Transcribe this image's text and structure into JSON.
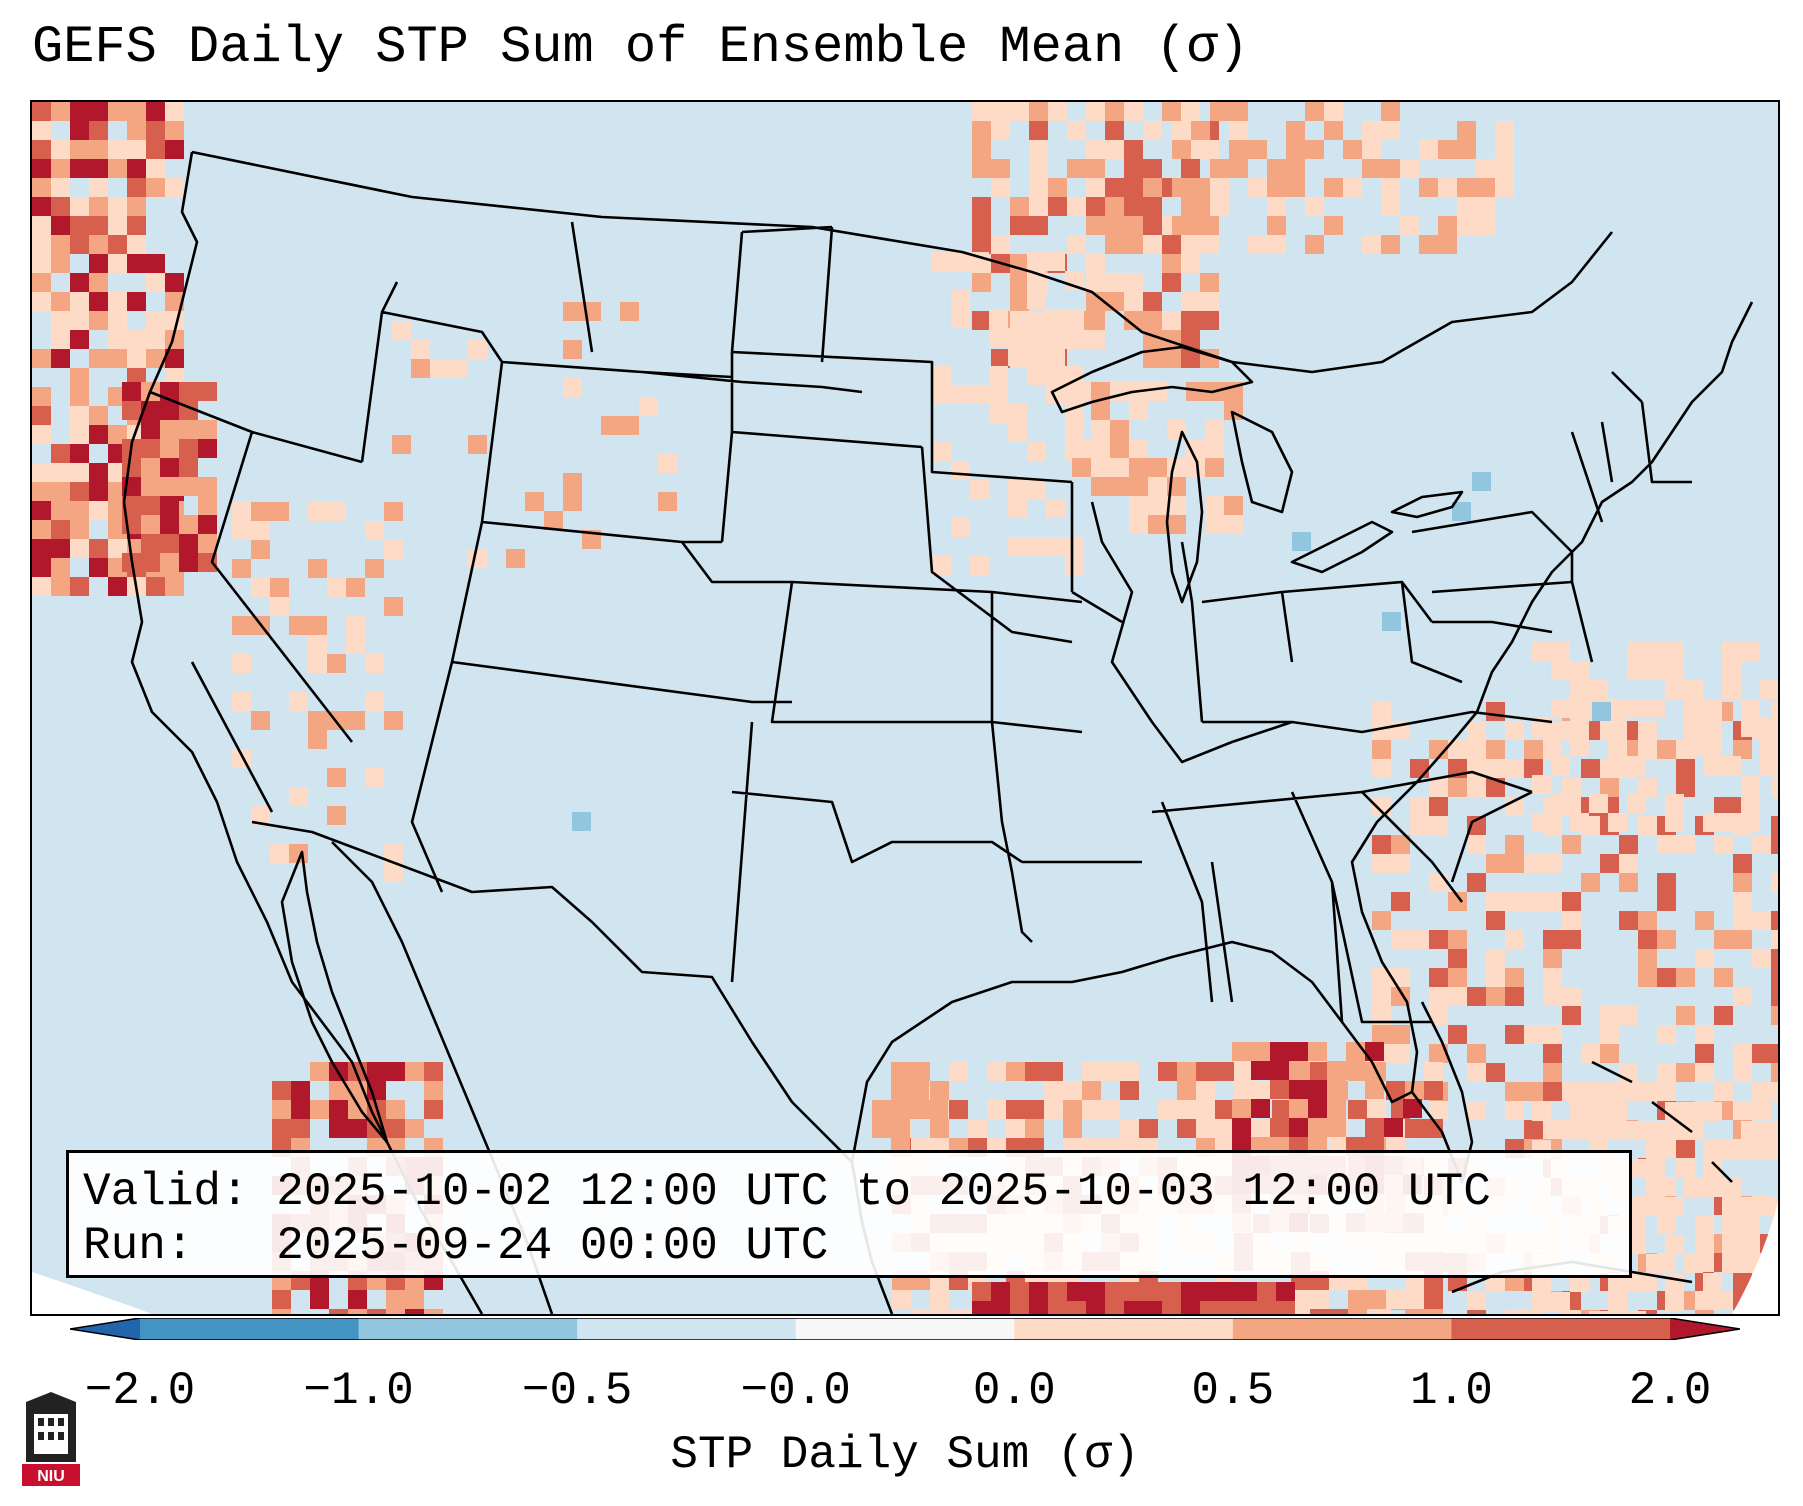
{
  "title": "GEFS Daily STP Sum of Ensemble Mean (σ)",
  "info": {
    "valid_text": "Valid: 2025-10-02 12:00 UTC to 2025-10-03 12:00 UTC",
    "run_text": "Run:   2025-09-24 00:00 UTC"
  },
  "colorbar": {
    "label": "STP Daily Sum (σ)",
    "ticks": [
      "−2.0",
      "−1.0",
      "−0.5",
      "−0.0",
      "0.0",
      "0.5",
      "1.0",
      "2.0"
    ],
    "colors": [
      "#2166ac",
      "#4393c3",
      "#92c5de",
      "#d1e5f0",
      "#f7f7f7",
      "#fddbc7",
      "#f4a582",
      "#d6604d",
      "#b2182b"
    ],
    "extend": "both"
  },
  "map": {
    "region": "Continental United States",
    "background_color": "#d1e5f0",
    "features": [
      "state-borders",
      "coastlines",
      "great-lakes"
    ]
  },
  "logo": {
    "text": "NIU",
    "color": "#c8102e"
  }
}
